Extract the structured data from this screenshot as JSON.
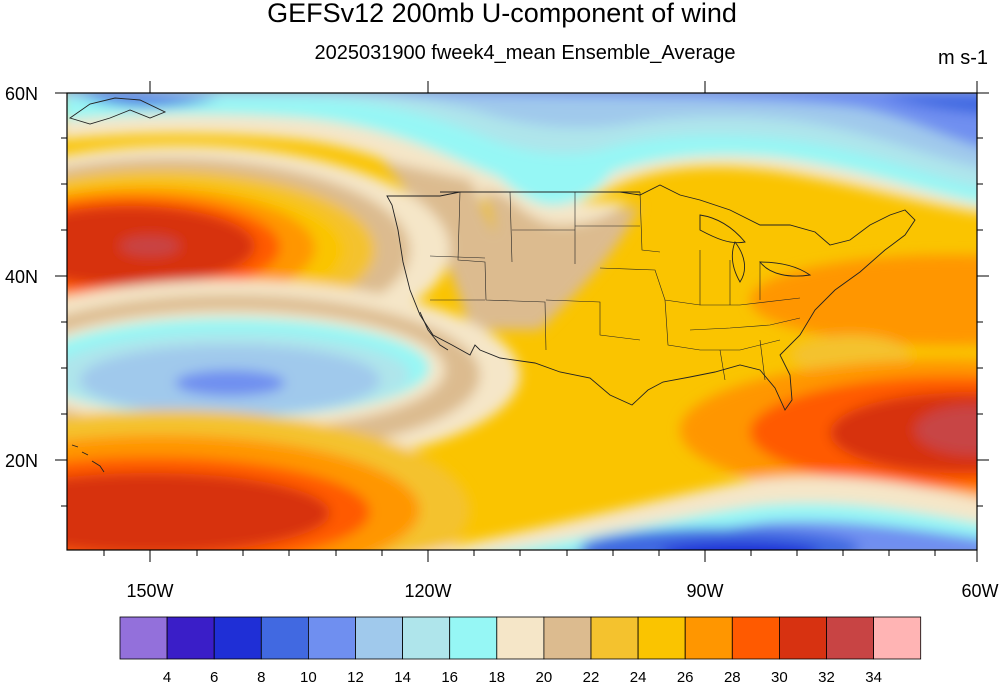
{
  "title": "GEFSv12 200mb U-component of wind",
  "subtitle": "2025031900 fweek4_mean Ensemble_Average",
  "units": "m s-1",
  "map": {
    "lat_labels": [
      "60N",
      "40N",
      "20N"
    ],
    "lon_labels": [
      "150W",
      "120W",
      "90W",
      "60W"
    ],
    "lon_range": [
      -159,
      -60
    ],
    "lat_range": [
      10,
      60
    ]
  },
  "colorbar": {
    "labels": [
      "4",
      "6",
      "8",
      "10",
      "12",
      "14",
      "16",
      "18",
      "20",
      "22",
      "24",
      "26",
      "28",
      "30",
      "32",
      "34"
    ],
    "colors": [
      "#9370db",
      "#3a1ec8",
      "#1f2fd6",
      "#4169e1",
      "#6f8ff0",
      "#a0c9ec",
      "#afe5eb",
      "#96f7f5",
      "#f5e6c8",
      "#dcbb8f",
      "#f4c22e",
      "#fac400",
      "#ff9600",
      "#ff5a00",
      "#d73211",
      "#c84444",
      "#ffb4b4"
    ]
  }
}
